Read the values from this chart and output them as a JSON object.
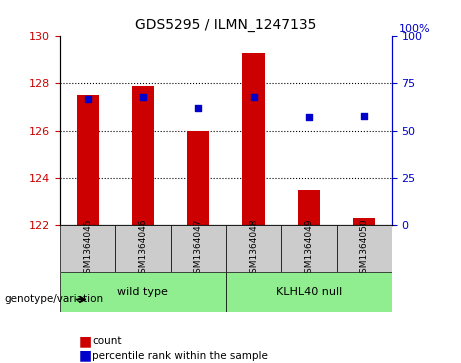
{
  "title": "GDS5295 / ILMN_1247135",
  "samples": [
    "GSM1364045",
    "GSM1364046",
    "GSM1364047",
    "GSM1364048",
    "GSM1364049",
    "GSM1364050"
  ],
  "groups": [
    "wild type",
    "wild type",
    "wild type",
    "KLHL40 null",
    "KLHL40 null",
    "KLHL40 null"
  ],
  "group_labels": [
    "wild type",
    "KLHL40 null"
  ],
  "count_values": [
    127.5,
    127.9,
    126.0,
    129.3,
    123.5,
    122.3
  ],
  "percentile_values": [
    67,
    68,
    62,
    68,
    57,
    58
  ],
  "ylim_left": [
    122,
    130
  ],
  "ylim_right": [
    0,
    100
  ],
  "yticks_left": [
    122,
    124,
    126,
    128,
    130
  ],
  "yticks_right": [
    0,
    25,
    50,
    75,
    100
  ],
  "bar_color": "#cc0000",
  "dot_color": "#0000cc",
  "bar_bottom": 122,
  "group_colors": [
    "#90ee90",
    "#90ee90"
  ],
  "grid_color": "#000000",
  "bg_color": "#ffffff",
  "xlabel_color": "#cc0000",
  "ylabel_right_color": "#0000cc",
  "sample_bg": "#cccccc",
  "group_bg_wt": "#90ee90",
  "group_bg_kl": "#90ee90"
}
